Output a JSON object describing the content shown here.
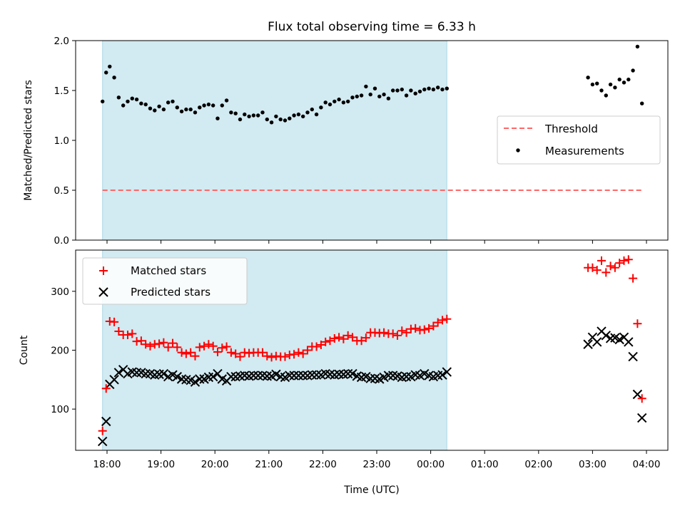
{
  "title": "Flux total observing time = 6.33 h",
  "colors": {
    "shade": "#add8e6",
    "threshold": "#ff6666",
    "matched": "#ff0000",
    "predicted": "#000000",
    "measurements": "#000000"
  },
  "x_axis": {
    "label": "Time (UTC)",
    "ticks": [
      {
        "t": 0,
        "label": "18:00"
      },
      {
        "t": 1,
        "label": "19:00"
      },
      {
        "t": 2,
        "label": "20:00"
      },
      {
        "t": 3,
        "label": "21:00"
      },
      {
        "t": 4,
        "label": "22:00"
      },
      {
        "t": 5,
        "label": "23:00"
      },
      {
        "t": 6,
        "label": "00:00"
      },
      {
        "t": 7,
        "label": "01:00"
      },
      {
        "t": 8,
        "label": "02:00"
      },
      {
        "t": 9,
        "label": "03:00"
      },
      {
        "t": 10,
        "label": "04:00"
      }
    ]
  },
  "shaded_interval": {
    "start": "17:55",
    "end": "00:18"
  },
  "chart_data": [
    {
      "type": "scatter",
      "ylabel": "Matched/Predicted stars",
      "ylim": [
        0,
        2.0
      ],
      "yticks": [
        "0.0",
        "0.5",
        "1.0",
        "1.5",
        "2.0"
      ],
      "threshold": {
        "name": "Threshold",
        "value": 0.5,
        "x_range": [
          "17:55",
          "03:55"
        ]
      },
      "legend": {
        "placement": "center-right",
        "entries": [
          "Threshold",
          "Measurements"
        ]
      },
      "series": [
        {
          "name": "Measurements",
          "x": [
            "17:55",
            "17:59",
            "18:03",
            "18:08",
            "18:13",
            "18:18",
            "18:23",
            "18:28",
            "18:33",
            "18:38",
            "18:43",
            "18:48",
            "18:53",
            "18:58",
            "19:03",
            "19:08",
            "19:13",
            "19:18",
            "19:23",
            "19:28",
            "19:33",
            "19:38",
            "19:43",
            "19:48",
            "19:53",
            "19:58",
            "20:03",
            "20:08",
            "20:13",
            "20:18",
            "20:23",
            "20:28",
            "20:33",
            "20:38",
            "20:43",
            "20:48",
            "20:53",
            "20:58",
            "21:03",
            "21:08",
            "21:13",
            "21:18",
            "21:23",
            "21:28",
            "21:33",
            "21:38",
            "21:43",
            "21:48",
            "21:53",
            "21:58",
            "22:03",
            "22:08",
            "22:13",
            "22:18",
            "22:23",
            "22:28",
            "22:33",
            "22:38",
            "22:43",
            "22:48",
            "22:53",
            "22:58",
            "23:03",
            "23:08",
            "23:13",
            "23:18",
            "23:23",
            "23:28",
            "23:33",
            "23:38",
            "23:43",
            "23:48",
            "23:53",
            "23:58",
            "00:03",
            "00:08",
            "00:13",
            "00:18",
            "02:55",
            "03:00",
            "03:05",
            "03:10",
            "03:15",
            "03:20",
            "03:25",
            "03:30",
            "03:35",
            "03:40",
            "03:45",
            "03:50",
            "03:55"
          ],
          "y": [
            1.39,
            1.68,
            1.74,
            1.63,
            1.43,
            1.35,
            1.39,
            1.42,
            1.41,
            1.37,
            1.36,
            1.32,
            1.3,
            1.34,
            1.31,
            1.38,
            1.39,
            1.33,
            1.29,
            1.31,
            1.31,
            1.28,
            1.33,
            1.35,
            1.36,
            1.35,
            1.22,
            1.35,
            1.4,
            1.28,
            1.27,
            1.21,
            1.26,
            1.24,
            1.25,
            1.25,
            1.28,
            1.21,
            1.18,
            1.24,
            1.21,
            1.2,
            1.22,
            1.25,
            1.26,
            1.24,
            1.28,
            1.31,
            1.26,
            1.33,
            1.38,
            1.36,
            1.39,
            1.41,
            1.38,
            1.39,
            1.43,
            1.44,
            1.45,
            1.54,
            1.46,
            1.52,
            1.44,
            1.46,
            1.42,
            1.5,
            1.5,
            1.51,
            1.45,
            1.5,
            1.47,
            1.49,
            1.51,
            1.52,
            1.51,
            1.53,
            1.51,
            1.52,
            1.63,
            1.56,
            1.57,
            1.5,
            1.45,
            1.56,
            1.53,
            1.61,
            1.58,
            1.61,
            1.7,
            1.94,
            1.37
          ]
        }
      ]
    },
    {
      "type": "scatter",
      "xlabel": "Time (UTC)",
      "ylabel": "Count",
      "ylim": [
        30,
        370
      ],
      "yticks": [
        "100",
        "200",
        "300"
      ],
      "legend": {
        "placement": "upper-left",
        "entries": [
          "Matched stars",
          "Predicted stars"
        ]
      },
      "x": [
        "17:55",
        "17:59",
        "18:03",
        "18:08",
        "18:13",
        "18:18",
        "18:23",
        "18:28",
        "18:33",
        "18:38",
        "18:43",
        "18:48",
        "18:53",
        "18:58",
        "19:03",
        "19:08",
        "19:13",
        "19:18",
        "19:23",
        "19:28",
        "19:33",
        "19:38",
        "19:43",
        "19:48",
        "19:53",
        "19:58",
        "20:03",
        "20:08",
        "20:13",
        "20:18",
        "20:23",
        "20:28",
        "20:33",
        "20:38",
        "20:43",
        "20:48",
        "20:53",
        "20:58",
        "21:03",
        "21:08",
        "21:13",
        "21:18",
        "21:23",
        "21:28",
        "21:33",
        "21:38",
        "21:43",
        "21:48",
        "21:53",
        "21:58",
        "22:03",
        "22:08",
        "22:13",
        "22:18",
        "22:23",
        "22:28",
        "22:33",
        "22:38",
        "22:43",
        "22:48",
        "22:53",
        "22:58",
        "23:03",
        "23:08",
        "23:13",
        "23:18",
        "23:23",
        "23:28",
        "23:33",
        "23:38",
        "23:43",
        "23:48",
        "23:53",
        "23:58",
        "00:03",
        "00:08",
        "00:13",
        "00:18",
        "02:55",
        "03:00",
        "03:05",
        "03:10",
        "03:15",
        "03:20",
        "03:25",
        "03:30",
        "03:35",
        "03:40",
        "03:45",
        "03:50",
        "03:55"
      ],
      "series": [
        {
          "name": "Matched stars",
          "marker": "plus",
          "values": [
            63,
            135,
            249,
            248,
            232,
            226,
            226,
            228,
            215,
            216,
            210,
            207,
            210,
            211,
            213,
            205,
            212,
            205,
            196,
            194,
            196,
            190,
            205,
            207,
            210,
            207,
            197,
            204,
            206,
            196,
            194,
            189,
            196,
            195,
            196,
            196,
            196,
            190,
            188,
            190,
            189,
            189,
            192,
            193,
            196,
            194,
            200,
            206,
            206,
            209,
            214,
            216,
            220,
            222,
            219,
            225,
            222,
            216,
            216,
            221,
            230,
            230,
            229,
            230,
            228,
            228,
            225,
            233,
            230,
            236,
            237,
            234,
            235,
            237,
            241,
            247,
            251,
            253,
            340,
            340,
            336,
            352,
            332,
            343,
            340,
            348,
            352,
            354,
            322,
            245,
            118
          ]
        },
        {
          "name": "Predicted stars",
          "marker": "x",
          "values": [
            45,
            79,
            142,
            150,
            162,
            167,
            160,
            163,
            162,
            162,
            160,
            160,
            158,
            159,
            160,
            155,
            158,
            155,
            151,
            150,
            149,
            146,
            151,
            151,
            154,
            155,
            160,
            151,
            148,
            155,
            155,
            156,
            157,
            156,
            157,
            157,
            157,
            156,
            156,
            159,
            155,
            154,
            157,
            157,
            157,
            157,
            157,
            158,
            158,
            158,
            160,
            159,
            158,
            159,
            159,
            160,
            160,
            156,
            154,
            155,
            152,
            152,
            151,
            154,
            157,
            157,
            156,
            154,
            155,
            155,
            158,
            157,
            160,
            157,
            155,
            157,
            158,
            163,
            210,
            222,
            214,
            232,
            225,
            220,
            221,
            218,
            222,
            214,
            189,
            125,
            85
          ]
        }
      ]
    }
  ]
}
